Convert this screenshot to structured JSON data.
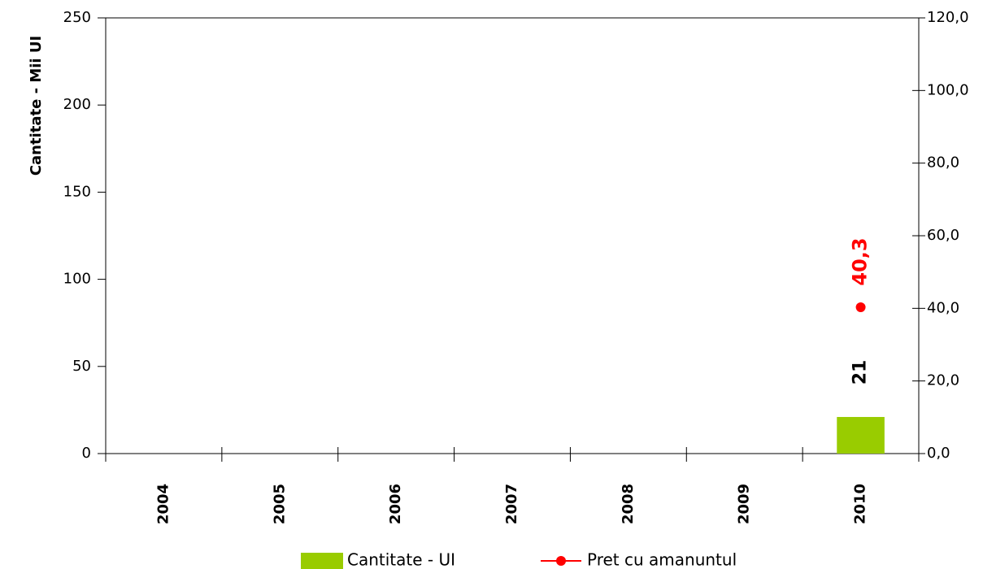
{
  "chart_data": {
    "type": "bar",
    "y_label": "Cantitate - Mii UI",
    "categories": [
      "2004",
      "2005",
      "2006",
      "2007",
      "2008",
      "2009",
      "2010"
    ],
    "series": [
      {
        "name": "Cantitate - UI",
        "type": "bar",
        "color": "#99cc00",
        "values": [
          null,
          null,
          null,
          null,
          null,
          null,
          21
        ],
        "value_labels": [
          null,
          null,
          null,
          null,
          null,
          null,
          "21"
        ]
      },
      {
        "name": "Pret cu amanuntul",
        "type": "line",
        "axis": "y2",
        "color": "#ff0000",
        "values": [
          null,
          null,
          null,
          null,
          null,
          null,
          40.3
        ],
        "value_labels": [
          null,
          null,
          null,
          null,
          null,
          null,
          "40,3"
        ]
      }
    ],
    "ylim": [
      0,
      250
    ],
    "yticks": [
      0,
      50,
      100,
      150,
      200,
      250
    ],
    "y2lim": [
      0,
      120
    ],
    "y2ticks": [
      {
        "value": 0,
        "label": "0,0"
      },
      {
        "value": 20,
        "label": "20,0"
      },
      {
        "value": 40,
        "label": "40,0"
      },
      {
        "value": 60,
        "label": "60,0"
      },
      {
        "value": 80,
        "label": "80,0"
      },
      {
        "value": 100,
        "label": "100,0"
      },
      {
        "value": 120,
        "label": "120,0"
      }
    ],
    "grid": false
  }
}
